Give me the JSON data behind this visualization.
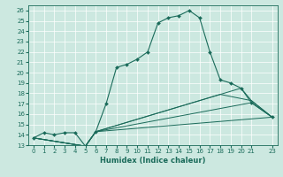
{
  "xlabel": "Humidex (Indice chaleur)",
  "background_color": "#cce8e0",
  "line_color": "#1a6b5a",
  "grid_color": "#ffffff",
  "xlim": [
    -0.5,
    23.5
  ],
  "ylim": [
    13,
    26.5
  ],
  "xticks": [
    0,
    1,
    2,
    3,
    4,
    5,
    6,
    7,
    8,
    9,
    10,
    11,
    12,
    13,
    14,
    15,
    16,
    17,
    18,
    19,
    20,
    21,
    23
  ],
  "yticks": [
    13,
    14,
    15,
    16,
    17,
    18,
    19,
    20,
    21,
    22,
    23,
    24,
    25,
    26
  ],
  "main_line": {
    "x": [
      0,
      1,
      2,
      3,
      4,
      5,
      6,
      7,
      8,
      9,
      10,
      11,
      12,
      13,
      14,
      15,
      16,
      17,
      18,
      19,
      20,
      21,
      23
    ],
    "y": [
      13.7,
      14.2,
      14.0,
      14.2,
      14.2,
      12.9,
      14.3,
      17.0,
      20.5,
      20.8,
      21.3,
      22.0,
      24.8,
      25.3,
      25.5,
      26.0,
      25.3,
      22.0,
      19.3,
      19.0,
      18.5,
      17.1,
      15.7
    ]
  },
  "flat_lines": [
    {
      "x": [
        0,
        5,
        6,
        23
      ],
      "y": [
        13.7,
        12.9,
        14.3,
        15.7
      ]
    },
    {
      "x": [
        0,
        5,
        6,
        21,
        23
      ],
      "y": [
        13.7,
        12.9,
        14.3,
        17.1,
        15.7
      ]
    },
    {
      "x": [
        0,
        5,
        6,
        18,
        21,
        23
      ],
      "y": [
        13.7,
        12.9,
        14.3,
        17.9,
        17.3,
        15.7
      ]
    },
    {
      "x": [
        0,
        5,
        6,
        20,
        21,
        23
      ],
      "y": [
        13.7,
        12.9,
        14.3,
        18.5,
        17.3,
        15.7
      ]
    }
  ]
}
